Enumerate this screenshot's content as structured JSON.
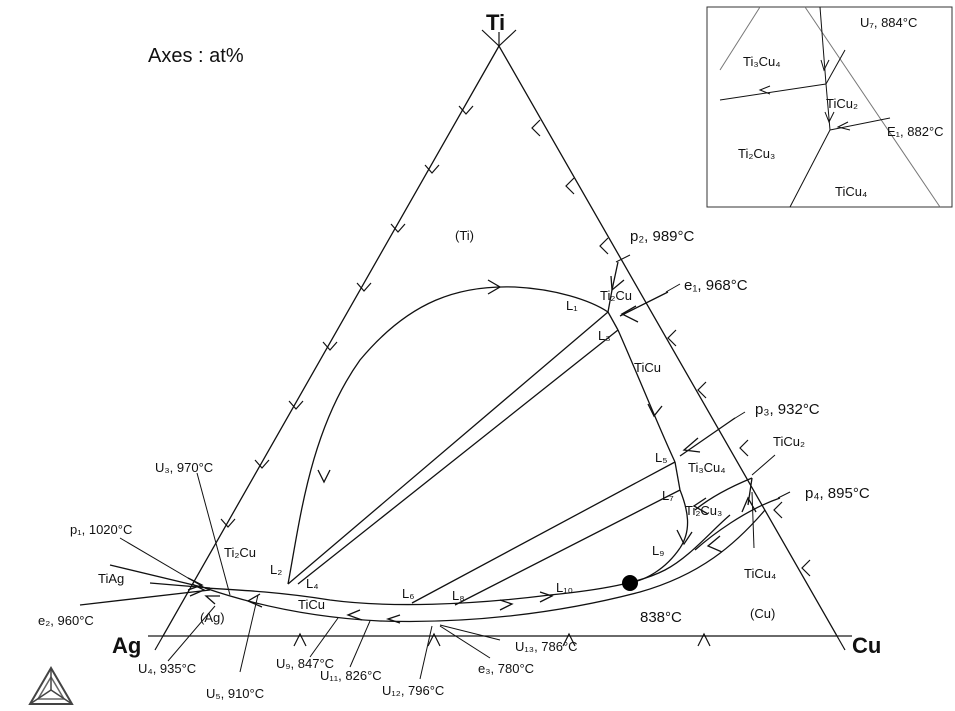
{
  "axes_note": "Axes : at%",
  "corners": {
    "top": "Ti",
    "left": "Ag",
    "right": "Cu"
  },
  "phases": {
    "ti": "(Ti)",
    "ag": "(Ag)",
    "cu": "(Cu)",
    "ti2cu_top": "Ti₂Cu",
    "ticu_right": "TiCu",
    "ti3cu4": "Ti₃Cu₄",
    "ti2cu3": "Ti₂Cu₃",
    "ticu2": "TiCu₂",
    "ticu4": "TiCu₄",
    "tiag": "TiAg",
    "ti2cu_left": "Ti₂Cu",
    "ticu_bottom": "TiCu",
    "temp_838": "838°C"
  },
  "points": {
    "p2": "p₂, 989°C",
    "e1": "e₁, 968°C",
    "p3": "p₃, 932°C",
    "p4": "p₄, 895°C",
    "u3": "U₃, 970°C",
    "p1": "p₁, 1020°C",
    "e2": "e₂, 960°C",
    "u4": "U₄, 935°C",
    "u5": "U₅, 910°C",
    "u9": "U₉, 847°C",
    "u11": "U₁₁, 826°C",
    "u12": "U₁₂, 796°C",
    "e3": "e₃, 780°C",
    "u13": "U₁₃, 786°C"
  },
  "liquids": [
    "L₁",
    "L₂",
    "L₃",
    "L₄",
    "L₅",
    "L₆",
    "L₇",
    "L₈",
    "L₉",
    "L₁₀"
  ],
  "inset": {
    "u7": "U₇, 884°C",
    "e1": "E₁, 882°C",
    "ti3cu4": "Ti₃Cu₄",
    "ticu2": "TiCu₂",
    "ti2cu3": "Ti₂Cu₃",
    "ticu4": "TiCu₄"
  }
}
